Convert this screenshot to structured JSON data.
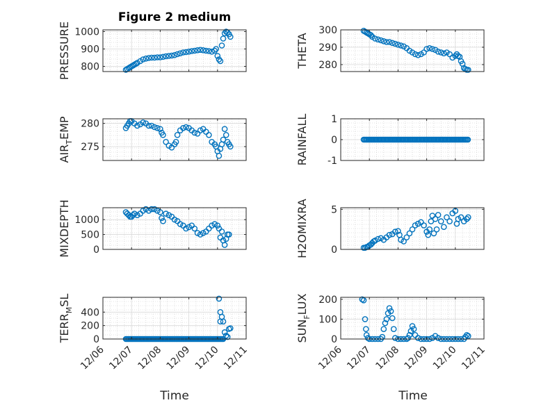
{
  "figure": {
    "title": "Figure 2 medium",
    "xlabel": "Time",
    "xticks": [
      "12/06",
      "12/07",
      "12/08",
      "12/09",
      "12/10",
      "12/11"
    ],
    "marker_color": "#0072BD",
    "grid": "on"
  },
  "chart_data": [
    {
      "type": "scatter",
      "ylabel": "PRESSURE",
      "ylim": [
        770,
        1010
      ],
      "yticks": [
        "800",
        "900",
        "1000"
      ],
      "ytick_values": [
        800,
        900,
        1000
      ],
      "x": [
        6.8,
        6.85,
        6.9,
        6.95,
        7.0,
        7.05,
        7.1,
        7.15,
        7.2,
        7.3,
        7.4,
        7.5,
        7.6,
        7.7,
        7.8,
        7.9,
        8.0,
        8.1,
        8.2,
        8.3,
        8.4,
        8.5,
        8.6,
        8.7,
        8.8,
        8.9,
        9.0,
        9.1,
        9.2,
        9.3,
        9.4,
        9.5,
        9.6,
        9.7,
        9.8,
        9.9,
        9.95,
        10.0,
        10.05,
        10.1,
        10.15,
        10.2,
        10.25,
        10.3,
        10.35,
        10.4,
        10.45
      ],
      "y": [
        780,
        785,
        790,
        795,
        800,
        805,
        810,
        815,
        820,
        830,
        840,
        845,
        848,
        850,
        850,
        852,
        852,
        855,
        858,
        860,
        862,
        865,
        870,
        875,
        880,
        882,
        885,
        888,
        890,
        893,
        895,
        893,
        890,
        888,
        885,
        890,
        900,
        860,
        840,
        830,
        920,
        960,
        990,
        1000,
        995,
        985,
        970
      ]
    },
    {
      "type": "scatter",
      "ylabel": "THETA",
      "ylim": [
        276,
        300
      ],
      "yticks": [
        "280",
        "290",
        "300"
      ],
      "ytick_values": [
        280,
        290,
        300
      ],
      "x": [
        6.8,
        6.85,
        6.9,
        6.95,
        7.0,
        7.05,
        7.1,
        7.2,
        7.3,
        7.4,
        7.5,
        7.6,
        7.7,
        7.8,
        7.9,
        8.0,
        8.1,
        8.2,
        8.3,
        8.4,
        8.5,
        8.6,
        8.7,
        8.8,
        8.9,
        9.0,
        9.1,
        9.2,
        9.3,
        9.4,
        9.5,
        9.6,
        9.7,
        9.8,
        9.9,
        10.0,
        10.05,
        10.1,
        10.15,
        10.2,
        10.25,
        10.3,
        10.35,
        10.4,
        10.45
      ],
      "y": [
        299.5,
        299,
        298.5,
        298,
        297.5,
        297,
        296,
        295,
        294.5,
        294,
        293.5,
        293,
        293,
        292.5,
        292,
        291.5,
        291,
        290.5,
        289.5,
        288,
        287,
        286,
        285.5,
        286,
        287,
        289,
        289.5,
        289,
        288.5,
        287.5,
        287,
        286.5,
        287,
        286,
        284,
        285,
        286,
        285,
        284.5,
        282,
        280.5,
        278,
        277.5,
        277,
        277
      ]
    },
    {
      "type": "scatter",
      "ylabel": "AIR_TEMP",
      "ylim": [
        272,
        281
      ],
      "yticks": [
        "275",
        "280"
      ],
      "ytick_values": [
        275,
        280
      ],
      "x": [
        6.8,
        6.85,
        6.9,
        6.95,
        7.0,
        7.1,
        7.2,
        7.3,
        7.4,
        7.5,
        7.6,
        7.7,
        7.8,
        7.9,
        8.0,
        8.05,
        8.1,
        8.2,
        8.3,
        8.4,
        8.5,
        8.55,
        8.6,
        8.7,
        8.8,
        8.9,
        9.0,
        9.1,
        9.2,
        9.3,
        9.4,
        9.5,
        9.6,
        9.7,
        9.8,
        9.9,
        9.95,
        10.0,
        10.05,
        10.1,
        10.15,
        10.2,
        10.25,
        10.3,
        10.35,
        10.4,
        10.45
      ],
      "y": [
        279,
        279.5,
        280,
        280.5,
        280.5,
        280,
        279.5,
        279.8,
        280.2,
        280,
        279.5,
        279.5,
        279.2,
        279,
        278.8,
        278,
        277.5,
        276,
        275.2,
        274.8,
        275.5,
        276,
        277.5,
        278.5,
        279,
        279.2,
        279,
        278.5,
        278,
        277.8,
        278.5,
        278.8,
        278.2,
        277.5,
        276,
        275.5,
        275,
        274,
        273,
        274.5,
        275.5,
        276.5,
        278.8,
        277.5,
        276,
        275.5,
        275
      ]
    },
    {
      "type": "scatter",
      "ylabel": "RAINFALL",
      "ylim": [
        -1,
        1
      ],
      "yticks": [
        "-1",
        "0",
        "1"
      ],
      "ytick_values": [
        -1,
        0,
        1
      ],
      "x_start": 6.8,
      "x_end": 10.45,
      "x_step": 0.04,
      "value": 0
    },
    {
      "type": "scatter",
      "ylabel": "MIXDEPTH",
      "ylim": [
        0,
        1400
      ],
      "yticks": [
        "0",
        "500",
        "1000"
      ],
      "ytick_values": [
        0,
        500,
        1000
      ],
      "x": [
        6.8,
        6.85,
        6.9,
        6.95,
        7.0,
        7.05,
        7.1,
        7.2,
        7.3,
        7.4,
        7.5,
        7.6,
        7.7,
        7.8,
        7.9,
        8.0,
        8.05,
        8.1,
        8.2,
        8.3,
        8.4,
        8.5,
        8.6,
        8.7,
        8.8,
        8.9,
        9.0,
        9.1,
        9.2,
        9.3,
        9.4,
        9.5,
        9.6,
        9.7,
        9.8,
        9.9,
        10.0,
        10.05,
        10.1,
        10.15,
        10.2,
        10.25,
        10.3,
        10.35,
        10.4
      ],
      "y": [
        1250,
        1200,
        1150,
        1100,
        1100,
        1150,
        1200,
        1150,
        1200,
        1300,
        1350,
        1300,
        1350,
        1350,
        1300,
        1250,
        1050,
        950,
        1200,
        1150,
        1100,
        1000,
        950,
        850,
        800,
        700,
        750,
        800,
        700,
        550,
        500,
        550,
        600,
        700,
        800,
        850,
        800,
        700,
        400,
        600,
        300,
        150,
        350,
        500,
        500
      ]
    },
    {
      "type": "scatter",
      "ylabel": "H2OMIXRA",
      "ylim": [
        0,
        5.2
      ],
      "yticks": [
        "0",
        "5"
      ],
      "ytick_values": [
        0,
        5
      ],
      "x": [
        6.8,
        6.85,
        6.9,
        6.95,
        7.0,
        7.05,
        7.1,
        7.15,
        7.2,
        7.3,
        7.4,
        7.5,
        7.6,
        7.7,
        7.8,
        7.9,
        8.0,
        8.05,
        8.1,
        8.2,
        8.3,
        8.4,
        8.5,
        8.6,
        8.7,
        8.8,
        8.9,
        9.0,
        9.05,
        9.1,
        9.15,
        9.2,
        9.25,
        9.3,
        9.35,
        9.4,
        9.5,
        9.6,
        9.7,
        9.8,
        9.9,
        10.0,
        10.05,
        10.1,
        10.2,
        10.3,
        10.4,
        10.45
      ],
      "y": [
        0.2,
        0.2,
        0.3,
        0.3,
        0.5,
        0.6,
        0.8,
        1.0,
        1.1,
        1.3,
        1.4,
        1.2,
        1.5,
        1.8,
        1.9,
        2.2,
        2.3,
        1.8,
        1.2,
        1.0,
        1.5,
        2.0,
        2.5,
        3.0,
        3.2,
        3.4,
        3.0,
        2.2,
        1.8,
        2.5,
        3.5,
        4.2,
        2.0,
        3.8,
        2.5,
        4.3,
        3.5,
        2.8,
        4.0,
        3.5,
        4.5,
        4.8,
        3.2,
        3.8,
        4.0,
        3.5,
        3.8,
        4.0
      ]
    },
    {
      "type": "scatter",
      "ylabel": "TERR_MSL",
      "ylim": [
        0,
        620
      ],
      "yticks": [
        "0",
        "200",
        "400"
      ],
      "ytick_values": [
        0,
        200,
        400
      ],
      "x_baseline_start": 6.8,
      "x_baseline_end": 10.2,
      "x_step": 0.04,
      "baseline_value": 0,
      "x": [
        10.05,
        10.1,
        10.1,
        10.15,
        10.2,
        10.25,
        10.3,
        10.35,
        10.4,
        10.45
      ],
      "y": [
        600,
        400,
        260,
        330,
        260,
        100,
        50,
        30,
        150,
        160
      ]
    },
    {
      "type": "scatter",
      "ylabel": "SUN_FLUX",
      "ylim": [
        0,
        210
      ],
      "yticks": [
        "0",
        "100",
        "200"
      ],
      "ytick_values": [
        0,
        100,
        200
      ],
      "x": [
        6.75,
        6.8,
        6.85,
        6.88,
        6.9,
        6.95,
        7.0,
        7.1,
        7.2,
        7.3,
        7.4,
        7.45,
        7.5,
        7.55,
        7.6,
        7.65,
        7.7,
        7.75,
        7.8,
        7.85,
        7.9,
        8.0,
        8.1,
        8.2,
        8.3,
        8.35,
        8.4,
        8.45,
        8.5,
        8.55,
        8.6,
        8.7,
        8.8,
        8.9,
        9.0,
        9.1,
        9.2,
        9.3,
        9.4,
        9.5,
        9.6,
        9.7,
        9.8,
        9.9,
        10.0,
        10.1,
        10.2,
        10.3,
        10.35,
        10.4,
        10.45
      ],
      "y": [
        200,
        195,
        100,
        50,
        20,
        5,
        0,
        0,
        0,
        0,
        0,
        10,
        50,
        80,
        100,
        130,
        155,
        140,
        105,
        50,
        5,
        0,
        0,
        0,
        0,
        5,
        20,
        40,
        65,
        50,
        20,
        5,
        0,
        0,
        0,
        0,
        5,
        15,
        5,
        0,
        0,
        0,
        0,
        0,
        0,
        0,
        0,
        0,
        10,
        20,
        15
      ]
    }
  ]
}
